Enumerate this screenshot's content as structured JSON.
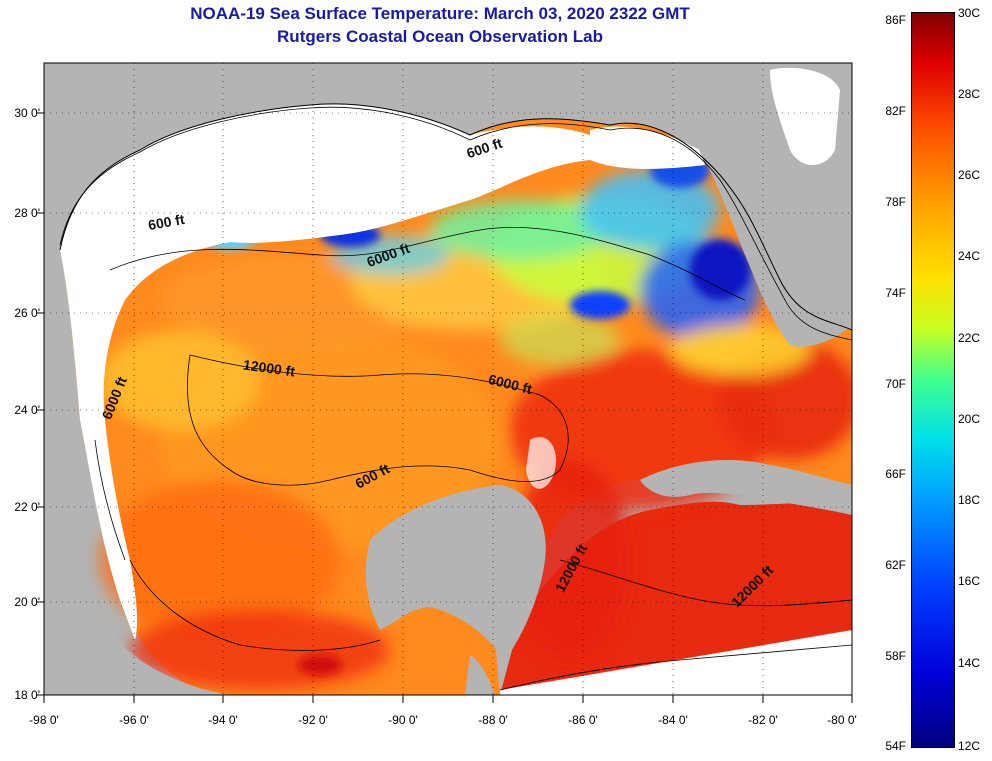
{
  "title": {
    "line1": "NOAA-19 Sea Surface Temperature:  March 03, 2020 2322 GMT",
    "line2": "Rutgers Coastal Ocean Observation Lab"
  },
  "axes": {
    "lat_labels": [
      "30 0'",
      "28 0'",
      "26 0'",
      "24 0'",
      "22 0'",
      "20 0'",
      "18 0'"
    ],
    "lon_labels": [
      "-98 0'",
      "-96 0'",
      "-94 0'",
      "-92 0'",
      "-90 0'",
      "-88 0'",
      "-86 0'",
      "-84 0'",
      "-82 0'",
      "-80 0'"
    ],
    "lat_range": [
      18,
      31
    ],
    "lon_range": [
      -98,
      -80
    ]
  },
  "colorbar": {
    "fahrenheit": [
      "86F",
      "82F",
      "78F",
      "74F",
      "70F",
      "66F",
      "62F",
      "58F",
      "54F"
    ],
    "celsius": [
      "30C",
      "28C",
      "26C",
      "24C",
      "22C",
      "20C",
      "18C",
      "16C",
      "14C",
      "12C"
    ]
  },
  "contour_labels": {
    "c1": "600 ft",
    "c2": "600 ft",
    "c3": "6000 ft",
    "c4": "12000 ft",
    "c5": "6000 ft",
    "c6": "6000 ft",
    "c7": "600 ft",
    "c8": "12000 ft",
    "c9": "12000 ft"
  },
  "colors": {
    "land": "#b4b4b4",
    "cloud": "#ffffff",
    "title": "#1a1aa6"
  }
}
